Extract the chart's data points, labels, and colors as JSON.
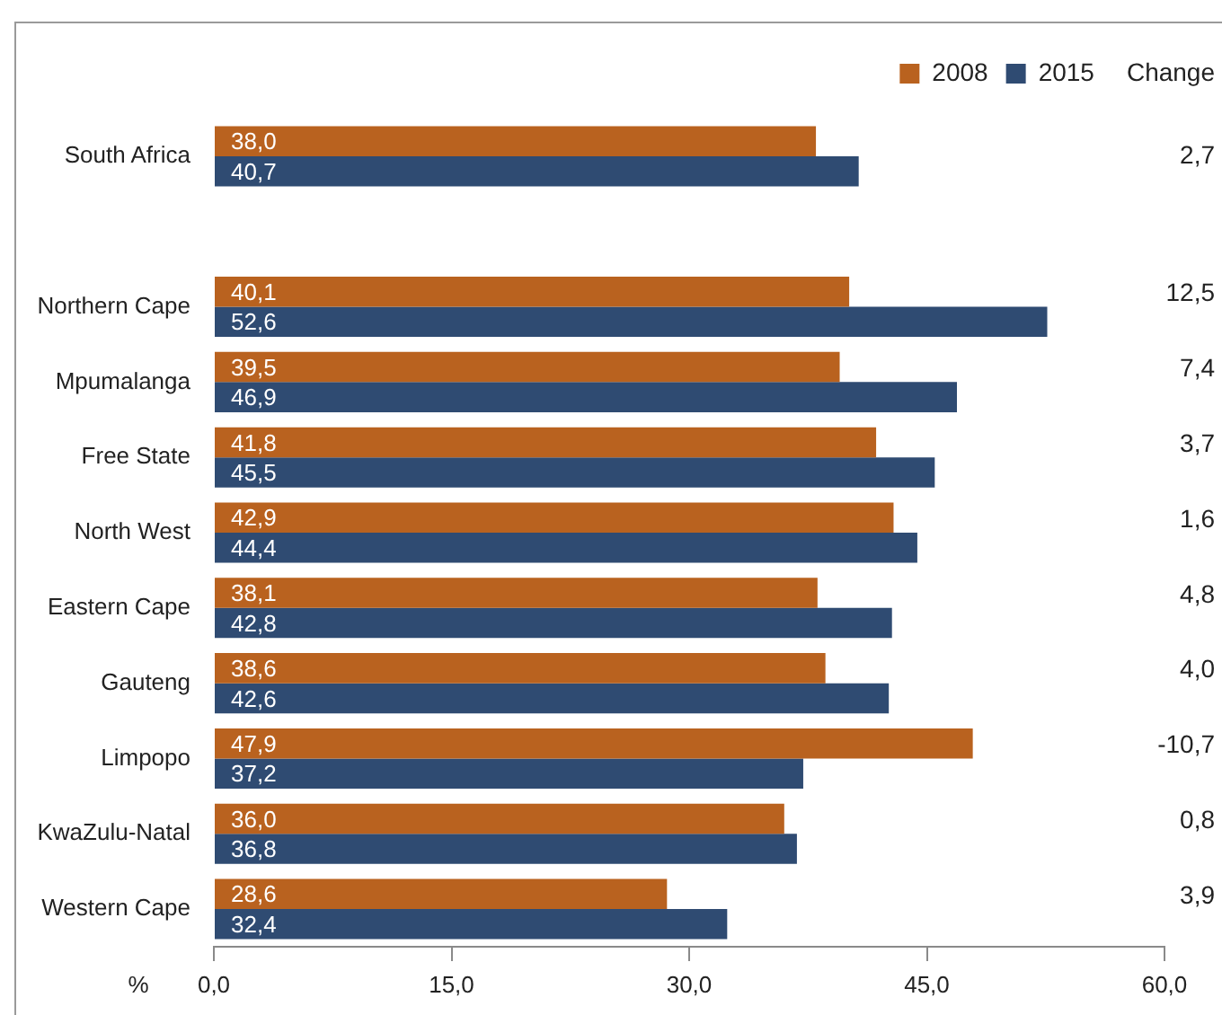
{
  "chart_data": {
    "type": "bar",
    "orientation": "horizontal",
    "categories": [
      "South Africa",
      null,
      "Northern Cape",
      "Mpumalanga",
      "Free State",
      "North West",
      "Eastern Cape",
      "Gauteng",
      "Limpopo",
      "KwaZulu-Natal",
      "Western Cape"
    ],
    "series": [
      {
        "name": "2008",
        "color": "#b9621f",
        "values": [
          38.0,
          null,
          40.1,
          39.5,
          41.8,
          42.9,
          38.1,
          38.6,
          47.9,
          36.0,
          28.6
        ],
        "value_labels": [
          "38,0",
          null,
          "40,1",
          "39,5",
          "41,8",
          "42,9",
          "38,1",
          "38,6",
          "47,9",
          "36,0",
          "28,6"
        ]
      },
      {
        "name": "2015",
        "color": "#2f4b72",
        "values": [
          40.7,
          null,
          52.6,
          46.9,
          45.5,
          44.4,
          42.8,
          42.6,
          37.2,
          36.8,
          32.4
        ],
        "value_labels": [
          "40,7",
          null,
          "52,6",
          "46,9",
          "45,5",
          "44,4",
          "42,8",
          "42,6",
          "37,2",
          "36,8",
          "32,4"
        ]
      }
    ],
    "xlabel": "%",
    "xlim": [
      0,
      60
    ],
    "xticks": [
      {
        "value": 0,
        "label": "0,0"
      },
      {
        "value": 15,
        "label": "15,0"
      },
      {
        "value": 30,
        "label": "30,0"
      },
      {
        "value": 45,
        "label": "45,0"
      },
      {
        "value": 60,
        "label": "60,0"
      }
    ],
    "legend": "top right",
    "annotations": [
      "Change",
      "2,7",
      "12,5",
      "7,4",
      "3,7",
      "1,6",
      "4,8",
      "4,0",
      "-10,7",
      "0,8",
      "3,9"
    ]
  }
}
